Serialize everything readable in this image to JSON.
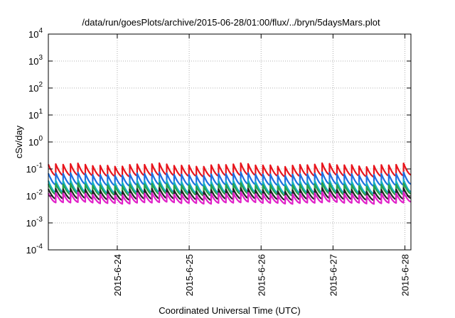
{
  "chart_data": {
    "type": "line",
    "title": "/data/run/goesPlots/archive/2015-06-28/01:00/flux/../bryn/5daysMars.plot",
    "xlabel": "Coordinated Universal Time (UTC)",
    "ylabel": "cSv/day",
    "yscale": "log",
    "ylim": [
      0.0001,
      10000
    ],
    "y_ticks": [
      {
        "base": "10",
        "exp": "-4",
        "value": 0.0001
      },
      {
        "base": "10",
        "exp": "-3",
        "value": 0.001
      },
      {
        "base": "10",
        "exp": "-2",
        "value": 0.01
      },
      {
        "base": "10",
        "exp": "-1",
        "value": 0.1
      },
      {
        "base": "10",
        "exp": "0",
        "value": 1
      },
      {
        "base": "10",
        "exp": "1",
        "value": 10
      },
      {
        "base": "10",
        "exp": "2",
        "value": 100
      },
      {
        "base": "10",
        "exp": "3",
        "value": 1000
      },
      {
        "base": "10",
        "exp": "4",
        "value": 10000
      }
    ],
    "xlim": [
      "2015-06-23 01:00",
      "2015-06-28 02:00"
    ],
    "x_ticks": [
      {
        "label": "2015-6-24",
        "value": "2015-06-24 00:00"
      },
      {
        "label": "2015-6-25",
        "value": "2015-06-25 00:00"
      },
      {
        "label": "2015-6-26",
        "value": "2015-06-26 00:00"
      },
      {
        "label": "2015-6-27",
        "value": "2015-06-27 00:00"
      },
      {
        "label": "2015-6-28",
        "value": "2015-06-28 00:00"
      }
    ],
    "grid": true,
    "pattern": "sawtooth, approx. 49 cycles over the time range; each cycle jumps to a peak then decays",
    "series": [
      {
        "color": "#e8141c",
        "peak": 0.14,
        "trough": 0.055
      },
      {
        "color": "#1e6fe0",
        "peak": 0.065,
        "trough": 0.025
      },
      {
        "color": "#15b0c4",
        "peak": 0.035,
        "trough": 0.013
      },
      {
        "color": "#2aa04a",
        "peak": 0.026,
        "trough": 0.011
      },
      {
        "color": "#222222",
        "peak": 0.017,
        "trough": 0.0075
      },
      {
        "color": "#e020c8",
        "peak": 0.012,
        "trough": 0.0055
      }
    ]
  }
}
